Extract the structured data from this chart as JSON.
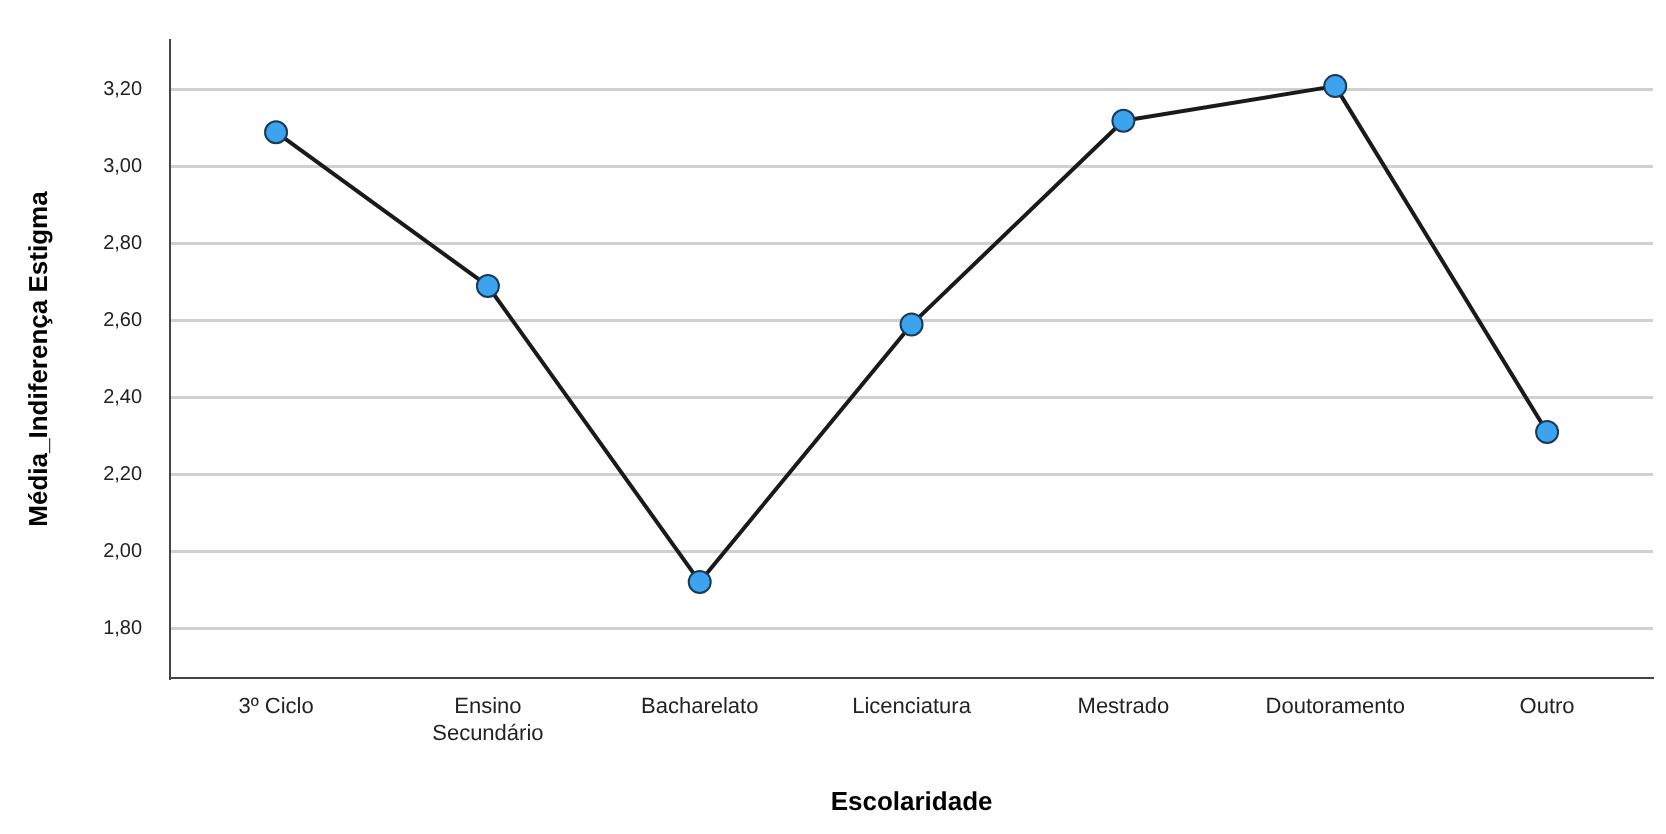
{
  "chart_data": {
    "type": "line",
    "xlabel": "Escolaridade",
    "ylabel": "Média_Indiferença Estigma",
    "categories": [
      "3º Ciclo",
      "Ensino\nSecundário",
      "Bacharelato",
      "Licenciatura",
      "Mestrado",
      "Doutoramento",
      "Outro"
    ],
    "series": [
      {
        "color": "#1a1a1a",
        "values": [
          3.09,
          2.69,
          1.92,
          2.59,
          3.12,
          3.21,
          2.31
        ]
      }
    ],
    "marker": "circle",
    "line_style": "solid",
    "grid": "y",
    "legend": false,
    "ylim": [
      1.67,
      3.33
    ],
    "yticks": [
      {
        "value": 1.8,
        "label": "1,80"
      },
      {
        "value": 2.0,
        "label": "2,00"
      },
      {
        "value": 2.2,
        "label": "2,20"
      },
      {
        "value": 2.4,
        "label": "2,40"
      },
      {
        "value": 2.6,
        "label": "2,60"
      },
      {
        "value": 2.8,
        "label": "2,80"
      },
      {
        "value": 3.0,
        "label": "3,00"
      },
      {
        "value": 3.2,
        "label": "3,20"
      }
    ]
  }
}
